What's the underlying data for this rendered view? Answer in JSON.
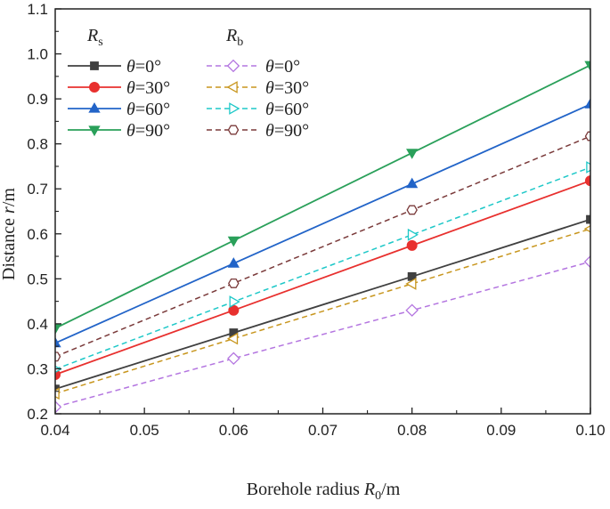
{
  "chart_data": {
    "type": "line",
    "title": "",
    "xlabel": "Borehole radius R0/m",
    "xlabel_main": "Borehole radius ",
    "xlabel_var": "R",
    "xlabel_sub": "0",
    "xlabel_unit": "/m",
    "ylabel": "Distance r/m",
    "ylabel_main": "Distance ",
    "ylabel_var": "r",
    "ylabel_unit": "/m",
    "xlim": [
      0.04,
      0.1
    ],
    "ylim": [
      0.2,
      1.1
    ],
    "x_ticks": [
      0.04,
      0.05,
      0.06,
      0.07,
      0.08,
      0.09,
      0.1
    ],
    "x_tick_labels": [
      "0.04",
      "0.05",
      "0.06",
      "0.07",
      "0.08",
      "0.09",
      "0.10"
    ],
    "y_ticks": [
      0.2,
      0.3,
      0.4,
      0.5,
      0.6,
      0.7,
      0.8,
      0.9,
      1.0,
      1.1
    ],
    "y_tick_labels": [
      "0.2",
      "0.3",
      "0.4",
      "0.5",
      "0.6",
      "0.7",
      "0.8",
      "0.9",
      "1.0",
      "1.1"
    ],
    "grid": false,
    "legend_position": "top-left",
    "legend_groups": [
      {
        "var": "R",
        "sub": "s"
      },
      {
        "var": "R",
        "sub": "b"
      }
    ],
    "x": [
      0.04,
      0.06,
      0.08,
      0.1
    ],
    "series": [
      {
        "name": "Rs θ=0°",
        "group": "Rs",
        "label_var": "θ",
        "label_rest": "=0°",
        "color": "#404040",
        "dash": false,
        "marker": "square",
        "filled": true,
        "values": [
          0.255,
          0.38,
          0.505,
          0.632
        ]
      },
      {
        "name": "Rs θ=30°",
        "group": "Rs",
        "label_var": "θ",
        "label_rest": "=30°",
        "color": "#e8302e",
        "dash": false,
        "marker": "circle",
        "filled": true,
        "values": [
          0.287,
          0.43,
          0.574,
          0.718
        ]
      },
      {
        "name": "Rs θ=60°",
        "group": "Rs",
        "label_var": "θ",
        "label_rest": "=60°",
        "color": "#2264c8",
        "dash": false,
        "marker": "triangle-up",
        "filled": true,
        "values": [
          0.357,
          0.534,
          0.711,
          0.888
        ]
      },
      {
        "name": "Rs θ=90°",
        "group": "Rs",
        "label_var": "θ",
        "label_rest": "=90°",
        "color": "#2aa05a",
        "dash": false,
        "marker": "triangle-down",
        "filled": true,
        "values": [
          0.39,
          0.585,
          0.78,
          0.975
        ]
      },
      {
        "name": "Rb θ=0°",
        "group": "Rb",
        "label_var": "θ",
        "label_rest": "=0°",
        "color": "#b476e0",
        "dash": true,
        "marker": "diamond",
        "filled": false,
        "values": [
          0.215,
          0.323,
          0.43,
          0.538
        ]
      },
      {
        "name": "Rb θ=30°",
        "group": "Rb",
        "label_var": "θ",
        "label_rest": "=30°",
        "color": "#c8961e",
        "dash": true,
        "marker": "triangle-left",
        "filled": false,
        "values": [
          0.245,
          0.367,
          0.489,
          0.611
        ]
      },
      {
        "name": "Rb θ=60°",
        "group": "Rb",
        "label_var": "θ",
        "label_rest": "=60°",
        "color": "#1ec8c8",
        "dash": true,
        "marker": "triangle-right",
        "filled": false,
        "values": [
          0.299,
          0.449,
          0.598,
          0.748
        ]
      },
      {
        "name": "Rb θ=90°",
        "group": "Rb",
        "label_var": "θ",
        "label_rest": "=90°",
        "color": "#7a3a3a",
        "dash": true,
        "marker": "hexagon",
        "filled": false,
        "values": [
          0.327,
          0.49,
          0.653,
          0.817
        ]
      }
    ]
  }
}
